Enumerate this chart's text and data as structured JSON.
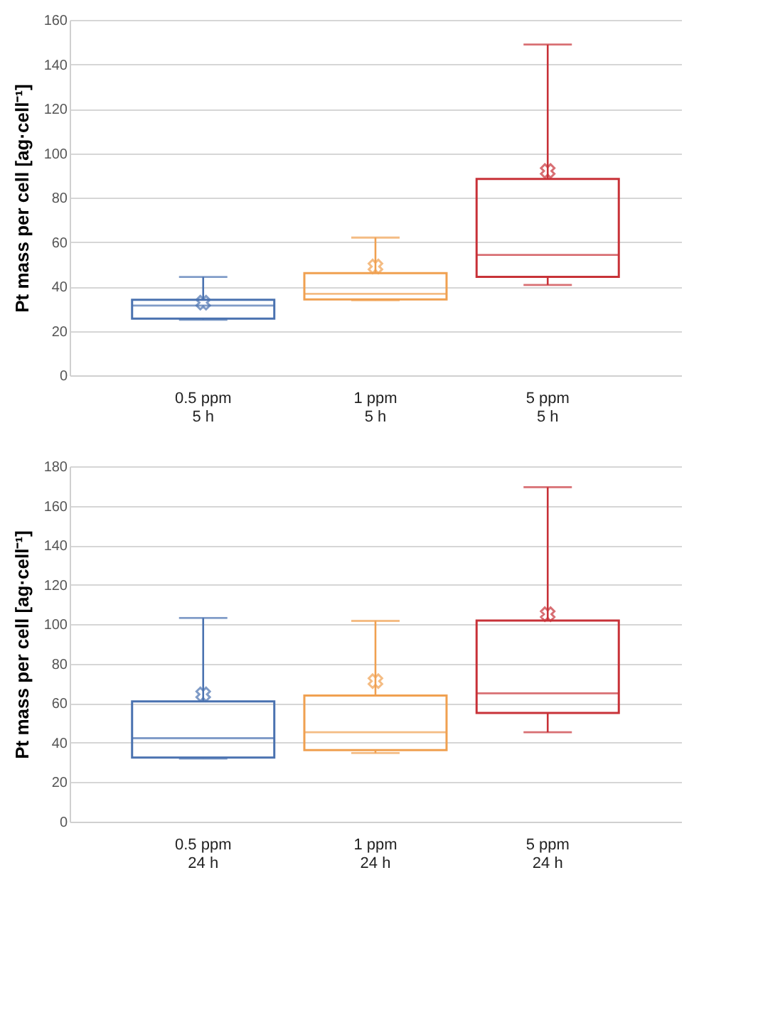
{
  "chart_data": [
    {
      "type": "box",
      "ylabel": "Pt mass per cell [ag·cell⁻¹]",
      "categories": [
        "0.5 ppm\n5 h",
        "1 ppm\n5 h",
        "5 ppm\n5 h"
      ],
      "colors": [
        "#4a72b0",
        "#f0a050",
        "#c83238"
      ],
      "boxes": [
        {
          "low": 25,
          "q1": 25.5,
          "median": 31.4,
          "q3": 34,
          "high": 44.3,
          "mean": 32.7
        },
        {
          "low": 33.8,
          "q1": 34.2,
          "median": 36.7,
          "q3": 46,
          "high": 62,
          "mean": 49
        },
        {
          "low": 40.7,
          "q1": 44.3,
          "median": 54.2,
          "q3": 88.4,
          "high": 148.9,
          "mean": 92
        }
      ],
      "ylim": [
        0,
        160
      ],
      "yticks": [
        0,
        20,
        40,
        60,
        80,
        100,
        120,
        140,
        160
      ],
      "grid": "y",
      "marker": "cross"
    },
    {
      "type": "box",
      "ylabel": "Pt mass per cell [ag·cell⁻¹]",
      "categories": [
        "0.5 ppm\n24 h",
        "1 ppm\n24 h",
        "5 ppm\n24 h"
      ],
      "colors": [
        "#4a72b0",
        "#f0a050",
        "#c83238"
      ],
      "boxes": [
        {
          "low": 32,
          "q1": 32.5,
          "median": 42.3,
          "q3": 60.9,
          "high": 103.2,
          "mean": 64.5
        },
        {
          "low": 34.8,
          "q1": 36.3,
          "median": 45.3,
          "q3": 63.9,
          "high": 101.7,
          "mean": 71.2
        },
        {
          "low": 45.3,
          "q1": 55.1,
          "median": 65,
          "q3": 101.9,
          "high": 169.4,
          "mean": 105.1
        }
      ],
      "ylim": [
        0,
        180
      ],
      "yticks": [
        0,
        20,
        40,
        60,
        80,
        100,
        120,
        140,
        160,
        180
      ],
      "grid": "y",
      "marker": "cross"
    }
  ]
}
